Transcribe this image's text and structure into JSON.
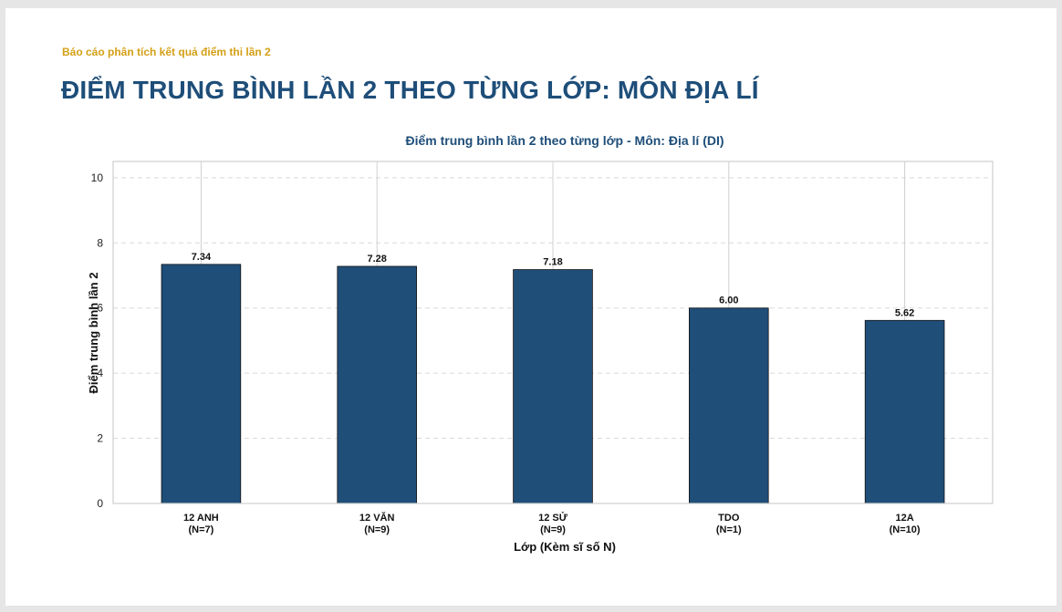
{
  "report": {
    "subtitle": "Báo cáo phân tích kết quả điểm thi lần 2",
    "title": "ĐIỂM TRUNG BÌNH LẦN 2 THEO TỪNG LỚP: MÔN ĐỊA LÍ"
  },
  "colors": {
    "bar": "#1f4e79",
    "accent": "#d4a017",
    "title": "#1e4e79"
  },
  "chart_data": {
    "type": "bar",
    "title": "Điểm trung bình lần 2 theo từng lớp - Môn: Địa lí (DI)",
    "xlabel": "Lớp (Kèm sĩ số N)",
    "ylabel": "Điểm trung bình lần 2",
    "categories": [
      "12 ANH",
      "12 VĂN",
      "12 SỬ",
      "TDO",
      "12A"
    ],
    "category_counts": [
      "(N=7)",
      "(N=9)",
      "(N=9)",
      "(N=1)",
      "(N=10)"
    ],
    "values": [
      7.34,
      7.28,
      7.18,
      6.0,
      5.62
    ],
    "value_labels": [
      "7.34",
      "7.28",
      "7.18",
      "6.00",
      "5.62"
    ],
    "ylim": [
      0,
      10.5
    ],
    "yticks": [
      0,
      2,
      4,
      6,
      8,
      10
    ],
    "grid": true,
    "legend": "none"
  }
}
